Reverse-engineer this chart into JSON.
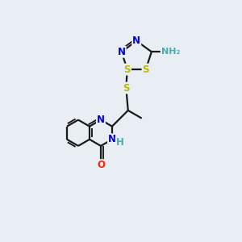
{
  "background_color": "#e8eef3",
  "bond_color": "#1a1a1a",
  "bond_width": 1.6,
  "atom_colors": {
    "N": "#0000ee",
    "S": "#bbbb00",
    "O": "#ff2200",
    "H": "#4aaeae",
    "C": "#1a1a1a"
  },
  "font_size": 8.5
}
